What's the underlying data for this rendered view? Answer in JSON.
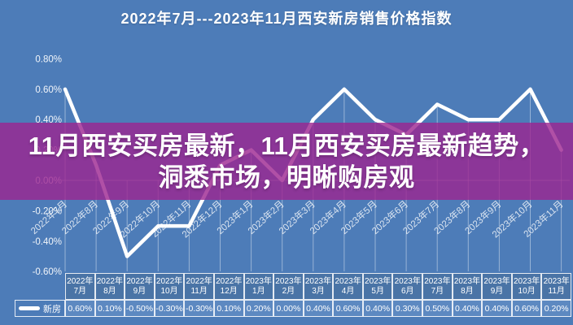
{
  "title": "2022年7月---2023年11月西安新房销售价格指数",
  "overlay": {
    "line1": "11月西安买房最新，11月西安买房最新趋势，",
    "line2": "洞悉市场，明晰购房观"
  },
  "chart_data": {
    "type": "line",
    "title": "2022年7月---2023年11月西安新房销售价格指数",
    "series": [
      {
        "name": "新房",
        "values": [
          0.6,
          0.1,
          -0.5,
          -0.3,
          -0.3,
          0.1,
          0.2,
          0.0,
          0.4,
          0.6,
          0.4,
          0.3,
          0.5,
          0.4,
          0.4,
          0.6,
          0.2
        ],
        "value_labels": [
          "0.60%",
          "0.10%",
          "-0.50%",
          "-0.30%",
          "-0.30%",
          "0.10%",
          "0.20%",
          "0.00%",
          "0.40%",
          "0.60%",
          "0.40%",
          "0.30%",
          "0.50%",
          "0.40%",
          "0.40%",
          "0.60%",
          "0.20%"
        ]
      }
    ],
    "categories": [
      "2022年7月",
      "2022年8月",
      "2022年9月",
      "2022年10月",
      "2022年11月",
      "2022年12月",
      "2023年1月",
      "2023年2月",
      "2023年3月",
      "2023年4月",
      "2023年5月",
      "2023年6月",
      "2023年7月",
      "2023年8月",
      "2023年9月",
      "2023年10月",
      "2023年11月"
    ],
    "y_ticks": [
      "0.80%",
      "0.60%",
      "0.40%",
      "0.20%",
      "0.00%",
      "-0.20%",
      "-0.40%",
      "-0.60%"
    ],
    "ylim": [
      -0.6,
      0.8
    ],
    "unit": "%",
    "grid": "zero-baseline with vertical drop lines per point",
    "legend_position": "bottom-table-left",
    "line_color": "#ffffff"
  },
  "table": {
    "legend_label": "新房"
  },
  "colors": {
    "background": "#4d7cb8",
    "banner_overlay": "#9c2490",
    "line": "#ffffff",
    "table_header_bg": "#4a74a6",
    "table_value_bg": "#5d89c1",
    "table_border": "#ffffff",
    "text": "#ffffff"
  }
}
